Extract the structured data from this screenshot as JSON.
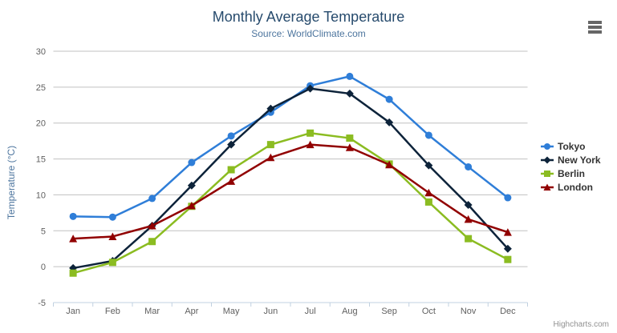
{
  "chart": {
    "title": "Monthly Average Temperature",
    "subtitle": "Source: WorldClimate.com",
    "credits": "Highcharts.com",
    "menu_icon": "hamburger-icon"
  },
  "chart_data": {
    "type": "line",
    "title": "Monthly Average Temperature",
    "subtitle": "Source: WorldClimate.com",
    "categories": [
      "Jan",
      "Feb",
      "Mar",
      "Apr",
      "May",
      "Jun",
      "Jul",
      "Aug",
      "Sep",
      "Oct",
      "Nov",
      "Dec"
    ],
    "series": [
      {
        "name": "Tokyo",
        "color": "#2f7ed8",
        "marker": "circle",
        "values": [
          7.0,
          6.9,
          9.5,
          14.5,
          18.2,
          21.5,
          25.2,
          26.5,
          23.3,
          18.3,
          13.9,
          9.6
        ]
      },
      {
        "name": "New York",
        "color": "#0d233a",
        "marker": "diamond",
        "values": [
          -0.2,
          0.8,
          5.7,
          11.3,
          17.0,
          22.0,
          24.8,
          24.1,
          20.1,
          14.1,
          8.6,
          2.5
        ]
      },
      {
        "name": "Berlin",
        "color": "#8bbc21",
        "marker": "square",
        "values": [
          -0.9,
          0.6,
          3.5,
          8.4,
          13.5,
          17.0,
          18.6,
          17.9,
          14.3,
          9.0,
          3.9,
          1.0
        ]
      },
      {
        "name": "London",
        "color": "#910000",
        "marker": "triangle",
        "values": [
          3.9,
          4.2,
          5.7,
          8.5,
          11.9,
          15.2,
          17.0,
          16.6,
          14.2,
          10.3,
          6.6,
          4.8
        ]
      }
    ],
    "xlabel": "",
    "ylabel": "Temperature (°C)",
    "ylim": [
      -5,
      30
    ],
    "ytick_step": 5,
    "grid": true,
    "legend_position": "right"
  },
  "colors": {
    "title": "#274b6d",
    "subtitle": "#4d759e",
    "axis_title": "#4d759e",
    "axis_labels": "#606060",
    "grid_line": "#c0c0c0",
    "axis_line": "#c0d0e0",
    "tick": "#c0d0e0",
    "legend_text": "#333333",
    "credits": "#909090",
    "menu_icon": "#666666",
    "background": "#ffffff"
  }
}
